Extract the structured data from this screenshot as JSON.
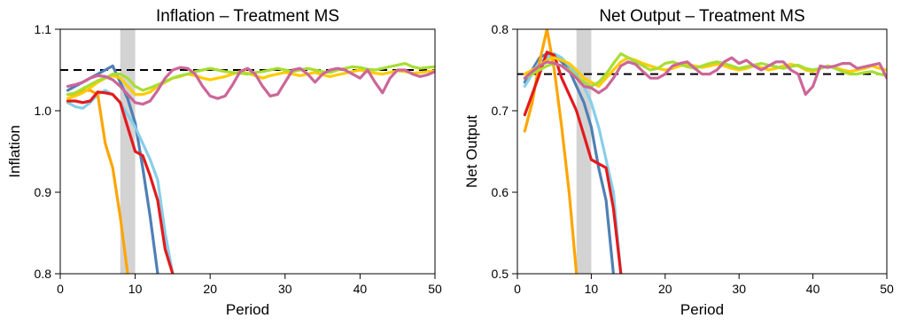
{
  "chart_data": [
    {
      "type": "line",
      "title": "Inflation – Treatment MS",
      "xlabel": "Period",
      "ylabel": "Inflation",
      "xlim": [
        0,
        50
      ],
      "ylim": [
        0.8,
        1.1
      ],
      "x_ticks": [
        "0",
        "10",
        "20",
        "30",
        "40",
        "50"
      ],
      "y_ticks": [
        "0.8",
        "0.9",
        "1.0",
        "1.1"
      ],
      "shaded_band": [
        8,
        10
      ],
      "target": 1.05,
      "series": [
        {
          "color": "#4f7fb5",
          "x": [
            1,
            2,
            3,
            4,
            5,
            6,
            7,
            8,
            9,
            10,
            11,
            12,
            13
          ],
          "y": [
            1.025,
            1.03,
            1.035,
            1.04,
            1.045,
            1.05,
            1.055,
            1.035,
            1.015,
            0.985,
            0.93,
            0.87,
            0.8
          ]
        },
        {
          "color": "#87ceeb",
          "x": [
            1,
            2,
            3,
            4,
            5,
            6,
            7,
            8,
            9,
            10,
            11,
            12,
            13,
            14,
            15
          ],
          "y": [
            1.01,
            1.005,
            1.003,
            1.01,
            1.02,
            1.025,
            1.02,
            1.01,
            0.995,
            0.98,
            0.96,
            0.94,
            0.915,
            0.85,
            0.8
          ]
        },
        {
          "color": "#ffa500",
          "x": [
            1,
            2,
            3,
            4,
            5,
            6,
            7,
            8,
            9
          ],
          "y": [
            1.02,
            1.02,
            1.025,
            1.025,
            1.02,
            0.96,
            0.93,
            0.87,
            0.8
          ]
        },
        {
          "color": "#e31a1c",
          "x": [
            1,
            2,
            3,
            4,
            5,
            6,
            7,
            8,
            9,
            10,
            11,
            12,
            13,
            14,
            15
          ],
          "y": [
            1.012,
            1.012,
            1.01,
            1.012,
            1.023,
            1.022,
            1.02,
            1.01,
            0.98,
            0.95,
            0.945,
            0.92,
            0.89,
            0.83,
            0.8
          ]
        },
        {
          "color": "#ffcc00",
          "x": [
            1,
            2,
            3,
            4,
            5,
            6,
            7,
            8,
            9,
            10,
            11,
            12,
            13,
            14,
            15,
            16,
            17,
            18,
            19,
            20,
            21,
            22,
            23,
            24,
            25,
            26,
            27,
            28,
            29,
            30,
            31,
            32,
            33,
            34,
            35,
            36,
            37,
            38,
            39,
            40,
            41,
            42,
            43,
            44,
            45,
            46,
            47,
            48,
            49,
            50
          ],
          "y": [
            1.015,
            1.018,
            1.022,
            1.028,
            1.035,
            1.04,
            1.043,
            1.04,
            1.03,
            1.02,
            1.02,
            1.023,
            1.03,
            1.035,
            1.04,
            1.042,
            1.045,
            1.043,
            1.04,
            1.038,
            1.04,
            1.042,
            1.045,
            1.048,
            1.046,
            1.043,
            1.04,
            1.043,
            1.045,
            1.047,
            1.045,
            1.043,
            1.045,
            1.047,
            1.044,
            1.042,
            1.044,
            1.046,
            1.048,
            1.05,
            1.048,
            1.046,
            1.045,
            1.047,
            1.049,
            1.048,
            1.046,
            1.047,
            1.048,
            1.049
          ]
        },
        {
          "color": "#a8dd35",
          "x": [
            1,
            2,
            3,
            4,
            5,
            6,
            7,
            8,
            9,
            10,
            11,
            12,
            13,
            14,
            15,
            16,
            17,
            18,
            19,
            20,
            21,
            22,
            23,
            24,
            25,
            26,
            27,
            28,
            29,
            30,
            31,
            32,
            33,
            34,
            35,
            36,
            37,
            38,
            39,
            40,
            41,
            42,
            43,
            44,
            45,
            46,
            47,
            48,
            49,
            50
          ],
          "y": [
            1.02,
            1.022,
            1.027,
            1.032,
            1.037,
            1.04,
            1.045,
            1.045,
            1.04,
            1.03,
            1.025,
            1.028,
            1.032,
            1.036,
            1.04,
            1.043,
            1.045,
            1.048,
            1.05,
            1.052,
            1.05,
            1.048,
            1.047,
            1.046,
            1.045,
            1.047,
            1.048,
            1.05,
            1.052,
            1.05,
            1.048,
            1.05,
            1.052,
            1.05,
            1.048,
            1.047,
            1.05,
            1.052,
            1.054,
            1.053,
            1.051,
            1.05,
            1.052,
            1.054,
            1.056,
            1.058,
            1.054,
            1.052,
            1.053,
            1.054
          ]
        },
        {
          "color": "#cc6699",
          "x": [
            1,
            2,
            3,
            4,
            5,
            6,
            7,
            8,
            9,
            10,
            11,
            12,
            13,
            14,
            15,
            16,
            17,
            18,
            19,
            20,
            21,
            22,
            23,
            24,
            25,
            26,
            27,
            28,
            29,
            30,
            31,
            32,
            33,
            34,
            35,
            36,
            37,
            38,
            39,
            40,
            41,
            42,
            43,
            44,
            45,
            46,
            47,
            48,
            49,
            50
          ],
          "y": [
            1.03,
            1.032,
            1.035,
            1.04,
            1.043,
            1.042,
            1.038,
            1.03,
            1.02,
            1.01,
            1.008,
            1.012,
            1.025,
            1.04,
            1.05,
            1.053,
            1.052,
            1.045,
            1.03,
            1.018,
            1.015,
            1.018,
            1.032,
            1.048,
            1.052,
            1.045,
            1.03,
            1.018,
            1.02,
            1.035,
            1.05,
            1.052,
            1.045,
            1.035,
            1.045,
            1.05,
            1.052,
            1.05,
            1.045,
            1.04,
            1.05,
            1.035,
            1.022,
            1.04,
            1.05,
            1.05,
            1.045,
            1.042,
            1.044,
            1.048
          ]
        }
      ]
    },
    {
      "type": "line",
      "title": "Net Output – Treatment MS",
      "xlabel": "Period",
      "ylabel": "Net Output",
      "xlim": [
        0,
        50
      ],
      "ylim": [
        0.5,
        0.8
      ],
      "x_ticks": [
        "0",
        "10",
        "20",
        "30",
        "40",
        "50"
      ],
      "y_ticks": [
        "0.5",
        "0.6",
        "0.7",
        "0.8"
      ],
      "shaded_band": [
        8,
        10
      ],
      "target": 0.745,
      "series": [
        {
          "color": "#4f7fb5",
          "x": [
            1,
            2,
            3,
            4,
            5,
            6,
            7,
            8,
            9,
            10,
            11,
            12,
            13
          ],
          "y": [
            0.735,
            0.75,
            0.765,
            0.77,
            0.768,
            0.76,
            0.75,
            0.73,
            0.71,
            0.68,
            0.63,
            0.59,
            0.5
          ]
        },
        {
          "color": "#87ceeb",
          "x": [
            1,
            2,
            3,
            4,
            5,
            6,
            7,
            8,
            9,
            10,
            11,
            12,
            13,
            14
          ],
          "y": [
            0.73,
            0.745,
            0.76,
            0.765,
            0.77,
            0.765,
            0.755,
            0.745,
            0.73,
            0.71,
            0.68,
            0.64,
            0.6,
            0.5
          ]
        },
        {
          "color": "#ffa500",
          "x": [
            1,
            2,
            3,
            4,
            5,
            6,
            7,
            8
          ],
          "y": [
            0.675,
            0.71,
            0.76,
            0.8,
            0.75,
            0.68,
            0.6,
            0.5
          ]
        },
        {
          "color": "#e31a1c",
          "x": [
            1,
            2,
            3,
            4,
            5,
            6,
            7,
            8,
            9,
            10,
            11,
            12,
            13,
            14
          ],
          "y": [
            0.695,
            0.72,
            0.745,
            0.772,
            0.768,
            0.74,
            0.72,
            0.7,
            0.67,
            0.64,
            0.635,
            0.63,
            0.58,
            0.5
          ]
        },
        {
          "color": "#ffcc00",
          "x": [
            1,
            2,
            3,
            4,
            5,
            6,
            7,
            8,
            9,
            10,
            11,
            12,
            13,
            14,
            15,
            16,
            17,
            18,
            19,
            20,
            21,
            22,
            23,
            24,
            25,
            26,
            27,
            28,
            29,
            30,
            31,
            32,
            33,
            34,
            35,
            36,
            37,
            38,
            39,
            40,
            41,
            42,
            43,
            44,
            45,
            46,
            47,
            48,
            49,
            50
          ],
          "y": [
            0.745,
            0.75,
            0.755,
            0.762,
            0.765,
            0.762,
            0.758,
            0.75,
            0.74,
            0.735,
            0.73,
            0.74,
            0.75,
            0.76,
            0.765,
            0.762,
            0.758,
            0.755,
            0.752,
            0.75,
            0.752,
            0.755,
            0.757,
            0.755,
            0.753,
            0.755,
            0.757,
            0.755,
            0.752,
            0.75,
            0.752,
            0.755,
            0.753,
            0.75,
            0.752,
            0.755,
            0.757,
            0.755,
            0.75,
            0.748,
            0.752,
            0.755,
            0.753,
            0.75,
            0.748,
            0.75,
            0.752,
            0.755,
            0.752,
            0.75
          ]
        },
        {
          "color": "#a8dd35",
          "x": [
            1,
            2,
            3,
            4,
            5,
            6,
            7,
            8,
            9,
            10,
            11,
            12,
            13,
            14,
            15,
            16,
            17,
            18,
            19,
            20,
            21,
            22,
            23,
            24,
            25,
            26,
            27,
            28,
            29,
            30,
            31,
            32,
            33,
            34,
            35,
            36,
            37,
            38,
            39,
            40,
            41,
            42,
            43,
            44,
            45,
            46,
            47,
            48,
            49,
            50
          ],
          "y": [
            0.74,
            0.745,
            0.75,
            0.755,
            0.758,
            0.755,
            0.75,
            0.742,
            0.735,
            0.73,
            0.735,
            0.745,
            0.758,
            0.77,
            0.765,
            0.76,
            0.755,
            0.75,
            0.752,
            0.758,
            0.76,
            0.757,
            0.754,
            0.752,
            0.755,
            0.758,
            0.76,
            0.758,
            0.755,
            0.752,
            0.754,
            0.756,
            0.758,
            0.756,
            0.754,
            0.752,
            0.754,
            0.756,
            0.752,
            0.75,
            0.752,
            0.755,
            0.752,
            0.748,
            0.745,
            0.745,
            0.747,
            0.748,
            0.745,
            0.743
          ]
        },
        {
          "color": "#cc6699",
          "x": [
            1,
            2,
            3,
            4,
            5,
            6,
            7,
            8,
            9,
            10,
            11,
            12,
            13,
            14,
            15,
            16,
            17,
            18,
            19,
            20,
            21,
            22,
            23,
            24,
            25,
            26,
            27,
            28,
            29,
            30,
            31,
            32,
            33,
            34,
            35,
            36,
            37,
            38,
            39,
            40,
            41,
            42,
            43,
            44,
            45,
            46,
            47,
            48,
            49,
            50
          ],
          "y": [
            0.74,
            0.748,
            0.755,
            0.76,
            0.758,
            0.755,
            0.748,
            0.74,
            0.73,
            0.728,
            0.722,
            0.728,
            0.74,
            0.755,
            0.76,
            0.757,
            0.748,
            0.74,
            0.74,
            0.745,
            0.755,
            0.758,
            0.76,
            0.752,
            0.745,
            0.745,
            0.75,
            0.76,
            0.765,
            0.758,
            0.762,
            0.755,
            0.75,
            0.755,
            0.76,
            0.76,
            0.75,
            0.745,
            0.72,
            0.73,
            0.755,
            0.753,
            0.755,
            0.758,
            0.758,
            0.752,
            0.754,
            0.756,
            0.758,
            0.74
          ]
        }
      ]
    }
  ]
}
